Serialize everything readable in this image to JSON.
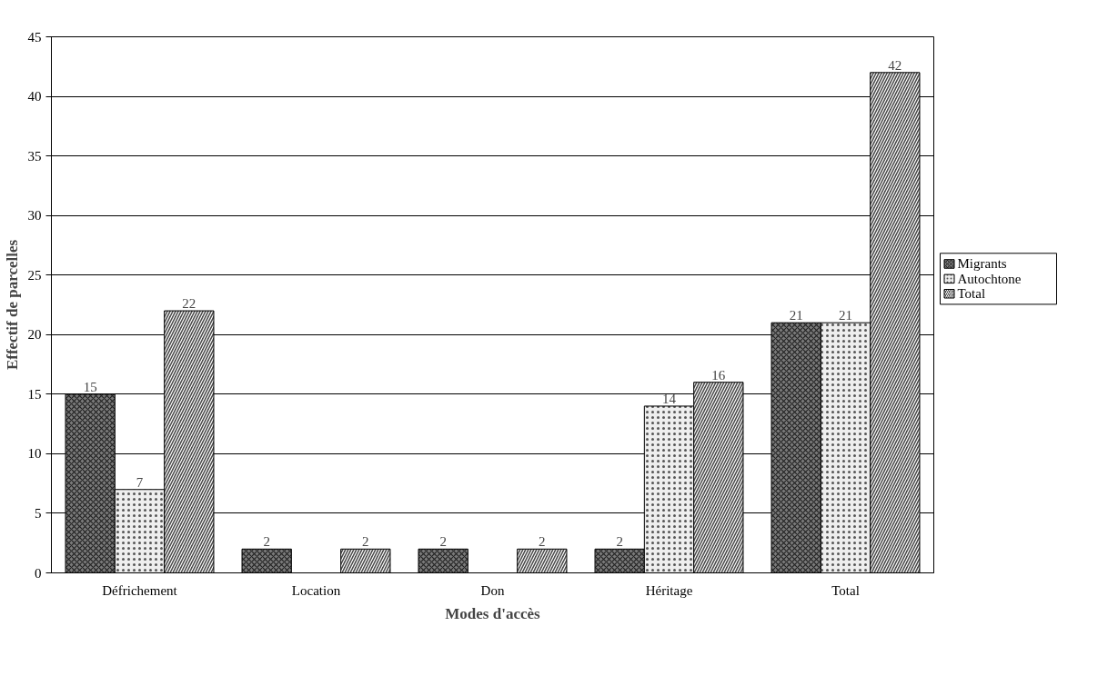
{
  "chart_data": {
    "type": "bar",
    "xlabel": "Modes d'accès",
    "ylabel": "Effectif de parcelles",
    "categories": [
      "Défrichement",
      "Location",
      "Don",
      "Héritage",
      "Total"
    ],
    "series": [
      {
        "name": "Migrants",
        "color": "#7a7a7a",
        "values": [
          15,
          2,
          2,
          2,
          21
        ],
        "value_labels": [
          "15",
          "2",
          "2",
          "2",
          "21"
        ]
      },
      {
        "name": "Autochtone",
        "color": "#eeeeee",
        "values": [
          7,
          null,
          null,
          14,
          21
        ],
        "value_labels": [
          "7",
          null,
          null,
          "14",
          "21"
        ]
      },
      {
        "name": "Total",
        "color": "#4a4a4a",
        "values": [
          22,
          2,
          2,
          16,
          42
        ],
        "value_labels": [
          "22",
          "2",
          "2",
          "16",
          "42"
        ]
      }
    ],
    "ylim": [
      0,
      45
    ],
    "yticks": [
      0,
      5,
      10,
      15,
      20,
      25,
      30,
      35,
      40,
      45
    ],
    "grid": "y",
    "legend": "right"
  }
}
